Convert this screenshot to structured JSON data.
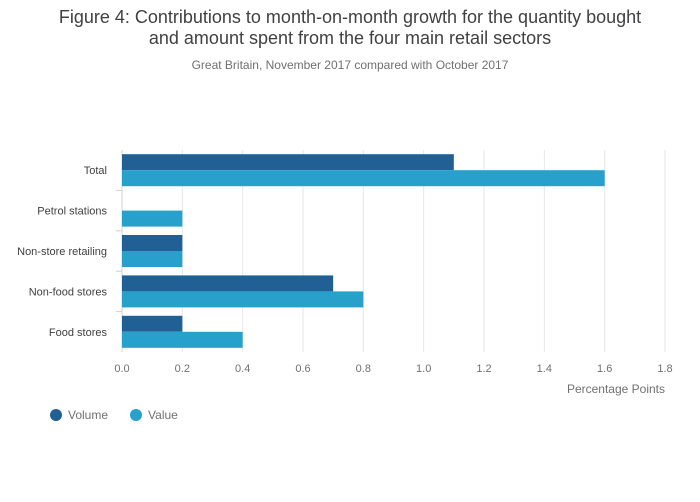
{
  "title_line1": "Figure 4: Contributions to month-on-month growth for the quantity bought",
  "title_line2": "and amount spent from the four main retail sectors",
  "subtitle": "Great Britain, November 2017 compared with October 2017",
  "chart_data": {
    "type": "bar",
    "orientation": "horizontal",
    "categories": [
      "Total",
      "Petrol stations",
      "Non-store retailing",
      "Non-food stores",
      "Food stores"
    ],
    "series": [
      {
        "name": "Volume",
        "color": "#206095",
        "values": [
          1.1,
          0.0,
          0.2,
          0.7,
          0.2
        ]
      },
      {
        "name": "Value",
        "color": "#27a0cc",
        "values": [
          1.6,
          0.2,
          0.2,
          0.8,
          0.4
        ]
      }
    ],
    "xlabel": "Percentage Points",
    "xlim": [
      0,
      1.8
    ],
    "xticks": [
      "0.0",
      "0.2",
      "0.4",
      "0.6",
      "0.8",
      "1.0",
      "1.2",
      "1.4",
      "1.6",
      "1.8"
    ],
    "grid": true,
    "legend_position": "bottom-left"
  }
}
